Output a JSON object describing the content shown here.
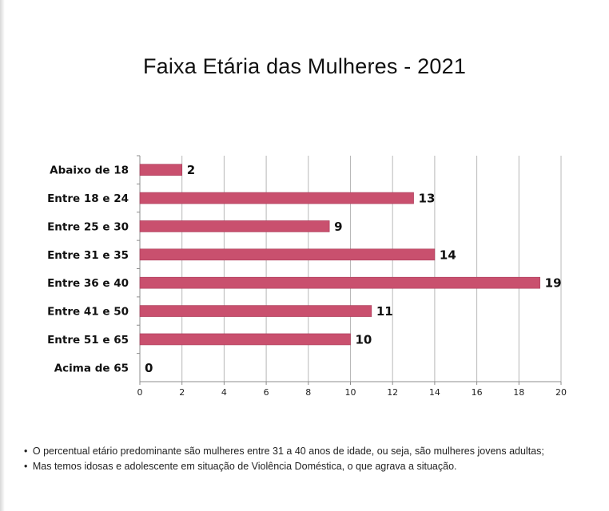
{
  "chart_data": {
    "type": "bar",
    "orientation": "horizontal",
    "title": "Faixa Etária das Mulheres - 2021",
    "categories": [
      "Abaixo de 18",
      "Entre 18 e 24",
      "Entre 25 e 30",
      "Entre 31 e 35",
      "Entre 36 e 40",
      "Entre 41 e 50",
      "Entre 51 e 65",
      "Acima de 65"
    ],
    "values": [
      2,
      13,
      9,
      14,
      19,
      11,
      10,
      0
    ],
    "xlim": [
      0,
      20
    ],
    "xticks": [
      0,
      2,
      4,
      6,
      8,
      10,
      12,
      14,
      16,
      18,
      20
    ],
    "grid": true,
    "legend": "none",
    "bar_color": "#c9506e",
    "grid_color": "#b8b8b8"
  },
  "notes": [
    {
      "bullet": "•",
      "text": "O percentual etário predominante são mulheres entre 31 a 40 anos de idade, ou seja, são mulheres jovens adultas;"
    },
    {
      "bullet": "•",
      "text": "Mas temos idosas e adolescente em situação de Violência Doméstica, o que agrava a situação."
    }
  ]
}
